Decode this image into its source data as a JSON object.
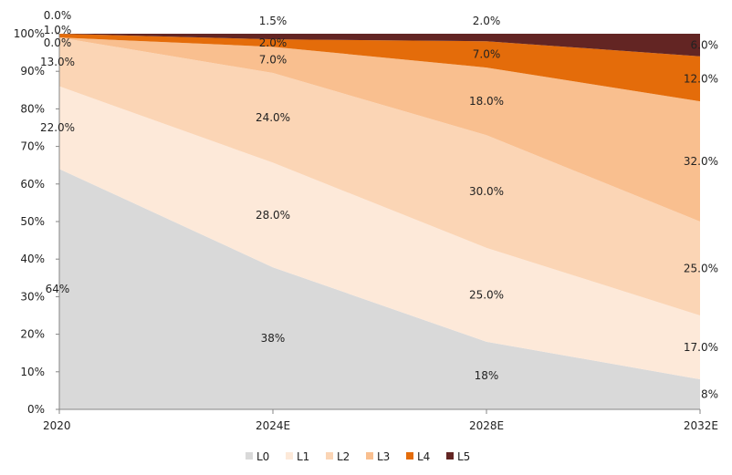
{
  "chart_data": {
    "type": "area",
    "stacked": true,
    "percent_stacked": true,
    "title": "",
    "xlabel": "",
    "ylabel": "",
    "categories": [
      "2020",
      "2024E",
      "2028E",
      "2032E"
    ],
    "ylim": [
      0,
      100
    ],
    "y_ticks": [
      "0%",
      "10%",
      "20%",
      "30%",
      "40%",
      "50%",
      "60%",
      "70%",
      "80%",
      "90%",
      "100%"
    ],
    "legend_position": "bottom-center",
    "series": [
      {
        "name": "L0",
        "color": "#d9d9d9",
        "values": [
          64,
          38,
          18,
          8
        ],
        "labels": [
          "64%",
          "38%",
          "18%",
          "8%"
        ]
      },
      {
        "name": "L1",
        "color": "#fde9d9",
        "values": [
          22,
          28,
          25,
          17
        ],
        "labels": [
          "22.0%",
          "28.0%",
          "25.0%",
          "17.0%"
        ]
      },
      {
        "name": "L2",
        "color": "#fbd5b5",
        "values": [
          13,
          24,
          30,
          25
        ],
        "labels": [
          "13.0%",
          "24.0%",
          "30.0%",
          "25.0%"
        ]
      },
      {
        "name": "L3",
        "color": "#f9bf8f",
        "values": [
          0,
          7,
          18,
          32
        ],
        "labels": [
          "0.0%",
          "7.0%",
          "18.0%",
          "32.0%"
        ]
      },
      {
        "name": "L4",
        "color": "#e46c0a",
        "values": [
          1,
          2,
          7,
          12
        ],
        "labels": [
          "1.0%",
          "2.0%",
          "7.0%",
          "12.0%"
        ]
      },
      {
        "name": "L5",
        "color": "#632523",
        "values": [
          0,
          1.5,
          2,
          6
        ],
        "labels": [
          "0.0%",
          "1.5%",
          "2.0%",
          "6.0%"
        ]
      }
    ]
  }
}
